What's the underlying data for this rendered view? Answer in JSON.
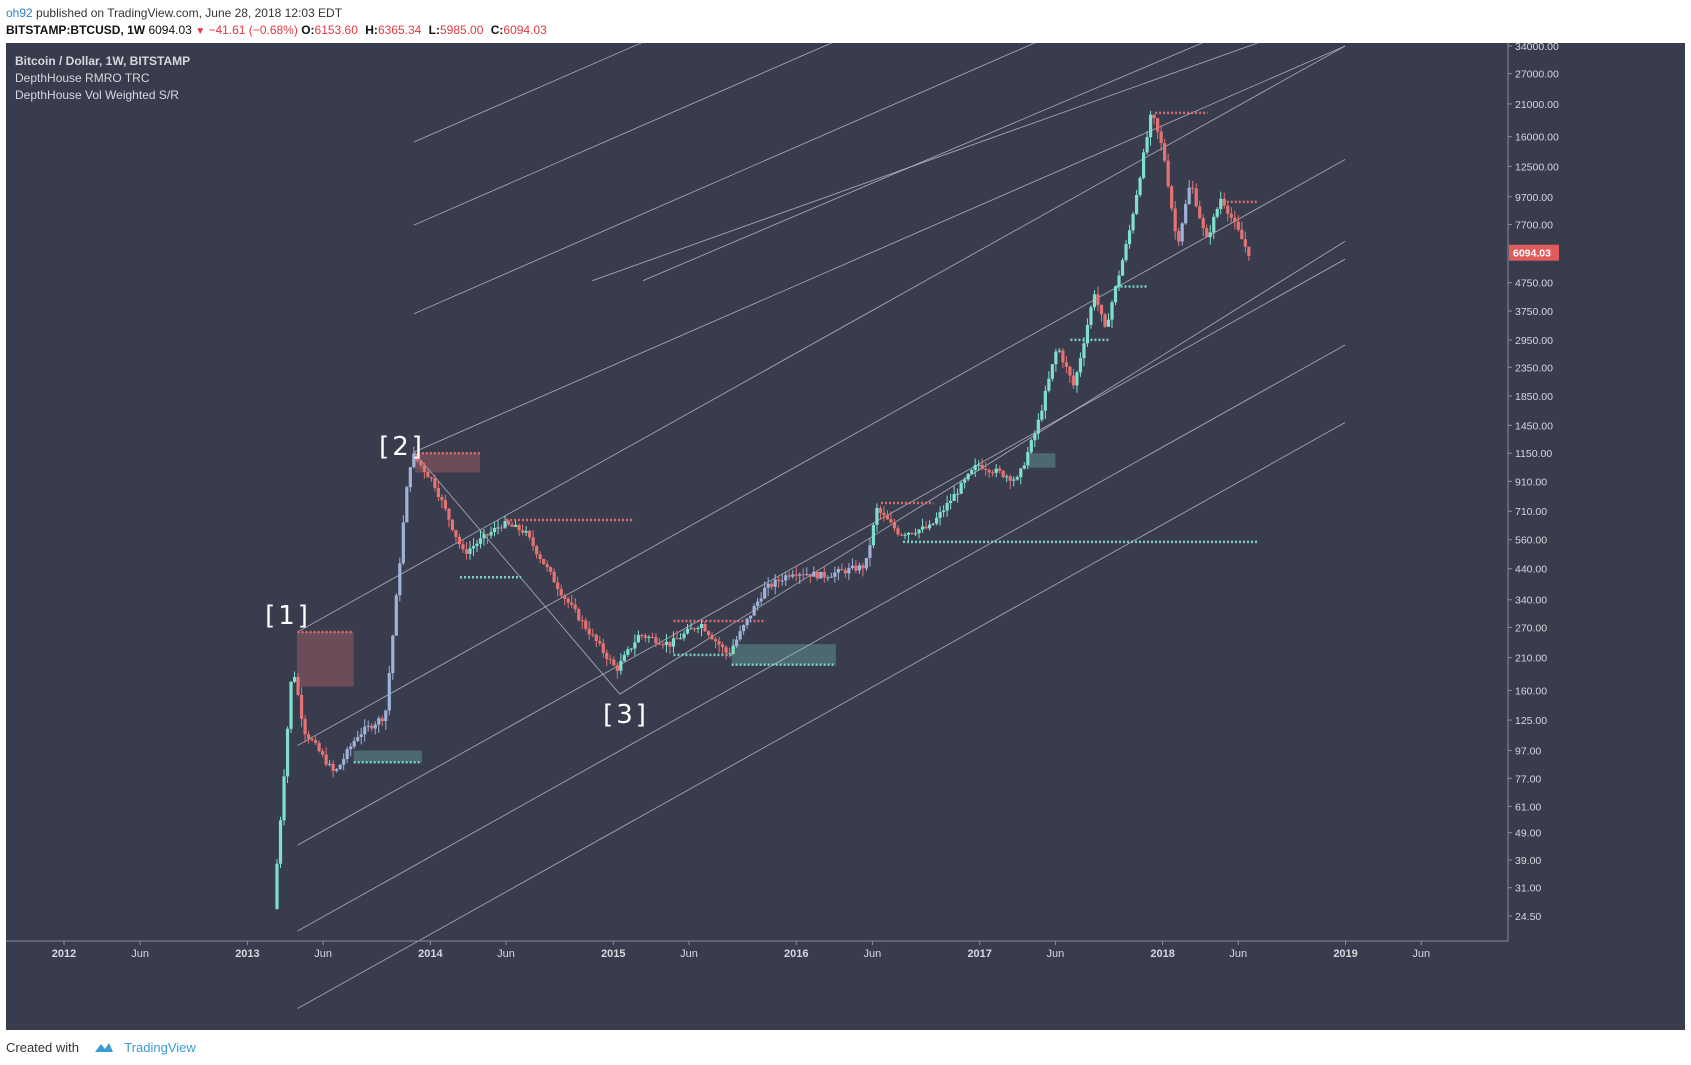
{
  "header": {
    "user": "oh92",
    "published": "published on TradingView.com, June 28, 2018 12:03 EDT",
    "symbol": "BITSTAMP:BTCUSD, 1W",
    "last": "6094.03",
    "change": "−41.61 (−0.68%)",
    "o_label": "O:",
    "o_value": "6153.60",
    "h_label": "H:",
    "h_value": "6365.34",
    "l_label": "L:",
    "l_value": "5985.00",
    "c_label": "C:",
    "c_value": "6094.03",
    "down_icon": "triangle-down-icon"
  },
  "legend": {
    "title": "Bitcoin / Dollar, 1W, BITSTAMP",
    "indicator_1": "DepthHouse RMRO TRC",
    "indicator_2": "DepthHouse Vol Weighted S/R"
  },
  "footer": {
    "created_with": "Created with",
    "brand": "TradingView",
    "logo_icon": "tradingview-cloud-icon"
  },
  "colors": {
    "background": "#383c4c",
    "bull": "#7fe0cd",
    "bear": "#e57373",
    "neutral": "#9fb3d9",
    "channel": "#c4c7d2",
    "price_label": "#e05b5b"
  },
  "chart_data": {
    "type": "candlestick",
    "x_ticks": [
      "2012",
      "Jun",
      "2013",
      "Jun",
      "2014",
      "Jun",
      "2015",
      "Jun",
      "2016",
      "Jun",
      "2017",
      "Jun",
      "2018",
      "Jun",
      "2019",
      "Jun"
    ],
    "y_scale": "log",
    "y_ticks": [
      "34000.00",
      "27000.00",
      "21000.00",
      "16000.00",
      "12500.00",
      "9700.00",
      "7700.00",
      "6094.03",
      "4750.00",
      "3750.00",
      "2950.00",
      "2350.00",
      "1850.00",
      "1450.00",
      "1150.00",
      "910.00",
      "710.00",
      "560.00",
      "440.00",
      "340.00",
      "270.00",
      "210.00",
      "160.00",
      "125.00",
      "97.00",
      "77.00",
      "61.00",
      "49.00",
      "39.00",
      "31.00",
      "24.50"
    ],
    "last_price": "6094.03",
    "annotations": [
      "[1]",
      "[2]",
      "[3]"
    ],
    "price_path": [
      [
        "2013-03-01",
        26
      ],
      [
        "2013-04-08",
        200
      ],
      [
        "2013-05-01",
        115
      ],
      [
        "2013-07-01",
        80
      ],
      [
        "2013-08-15",
        110
      ],
      [
        "2013-10-10",
        130
      ],
      [
        "2013-11-20",
        800
      ],
      [
        "2013-12-02",
        1150
      ],
      [
        "2014-01-15",
        900
      ],
      [
        "2014-03-15",
        500
      ],
      [
        "2014-06-01",
        640
      ],
      [
        "2014-07-15",
        600
      ],
      [
        "2014-10-01",
        350
      ],
      [
        "2015-01-14",
        190
      ],
      [
        "2015-03-01",
        255
      ],
      [
        "2015-05-01",
        235
      ],
      [
        "2015-07-01",
        280
      ],
      [
        "2015-08-25",
        215
      ],
      [
        "2015-11-05",
        370
      ],
      [
        "2016-01-01",
        430
      ],
      [
        "2016-03-01",
        415
      ],
      [
        "2016-05-25",
        450
      ],
      [
        "2016-06-17",
        720
      ],
      [
        "2016-08-01",
        590
      ],
      [
        "2016-10-01",
        620
      ],
      [
        "2017-01-04",
        1050
      ],
      [
        "2017-03-25",
        920
      ],
      [
        "2017-05-01",
        1400
      ],
      [
        "2017-06-12",
        2800
      ],
      [
        "2017-07-15",
        2000
      ],
      [
        "2017-08-25",
        4400
      ],
      [
        "2017-09-15",
        3200
      ],
      [
        "2017-11-01",
        7000
      ],
      [
        "2017-12-17",
        19500
      ],
      [
        "2018-01-10",
        14000
      ],
      [
        "2018-02-06",
        6500
      ],
      [
        "2018-03-05",
        11000
      ],
      [
        "2018-04-05",
        6700
      ],
      [
        "2018-05-05",
        9700
      ],
      [
        "2018-06-28",
        6094
      ]
    ],
    "channel_lines": [
      [
        "2013-04-11",
        260,
        "2018-12-31",
        34000
      ],
      [
        "2013-11-29",
        1160,
        "2018-12-31",
        34000
      ]
    ],
    "wedge_lines": [
      [
        "2013-11-29",
        1160,
        "2015-01-14",
        155
      ],
      [
        "2015-01-14",
        155,
        "2018-12-31",
        6700
      ]
    ],
    "supply_zones": [
      [
        "2013-04-10",
        "2013-08-01",
        165,
        260
      ],
      [
        "2013-12-01",
        "2014-04-10",
        980,
        1150
      ]
    ],
    "demand_zones": [
      [
        "2013-08-01",
        "2013-12-15",
        88,
        97
      ],
      [
        "2015-08-25",
        "2016-03-20",
        198,
        235
      ],
      [
        "2017-04-10",
        "2017-06-01",
        1020,
        1150
      ]
    ],
    "resistance_levels": [
      [
        "2013-04-11",
        "2013-08-01",
        260
      ],
      [
        "2013-11-29",
        "2014-04-10",
        1150
      ],
      [
        "2014-06-01",
        "2015-02-10",
        660
      ],
      [
        "2015-05-01",
        "2015-11-01",
        285
      ],
      [
        "2016-06-18",
        "2016-10-01",
        760
      ],
      [
        "2017-12-17",
        "2018-04-01",
        19500
      ],
      [
        "2018-05-01",
        "2018-07-10",
        9300
      ]
    ],
    "support_levels": [
      [
        "2013-08-01",
        "2013-12-15",
        88
      ],
      [
        "2014-03-01",
        "2014-07-01",
        410
      ],
      [
        "2015-05-01",
        "2015-08-25",
        215
      ],
      [
        "2015-08-25",
        "2016-03-20",
        198
      ],
      [
        "2016-08-01",
        "2018-07-10",
        550
      ],
      [
        "2017-07-01",
        "2017-09-15",
        2950
      ],
      [
        "2017-10-01",
        "2017-12-01",
        4600
      ]
    ]
  }
}
